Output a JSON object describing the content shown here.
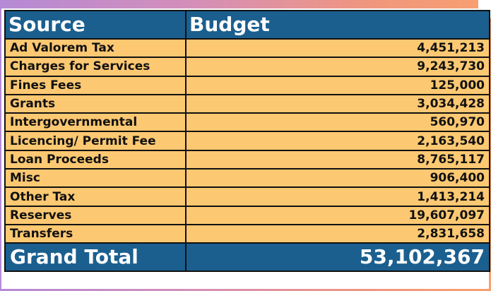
{
  "table": {
    "headers": {
      "source": "Source",
      "budget": "Budget"
    },
    "rows": [
      {
        "source": "Ad Valorem Tax",
        "budget": "4,451,213"
      },
      {
        "source": "Charges for Services",
        "budget": "9,243,730"
      },
      {
        "source": "Fines Fees",
        "budget": "125,000"
      },
      {
        "source": "Grants",
        "budget": "3,034,428"
      },
      {
        "source": "Intergovernmental",
        "budget": "560,970"
      },
      {
        "source": "Licencing/ Permit Fee",
        "budget": "2,163,540"
      },
      {
        "source": "Loan Proceeds",
        "budget": "8,765,117"
      },
      {
        "source": "Misc",
        "budget": "906,400"
      },
      {
        "source": "Other Tax",
        "budget": "1,413,214"
      },
      {
        "source": "Reserves",
        "budget": "19,607,097"
      },
      {
        "source": "Transfers",
        "budget": "2,831,658"
      }
    ],
    "total": {
      "label": "Grand Total",
      "value": "53,102,367"
    }
  },
  "colors": {
    "header_bg": "#1b5f8f",
    "row_bg": "#fcc872"
  }
}
